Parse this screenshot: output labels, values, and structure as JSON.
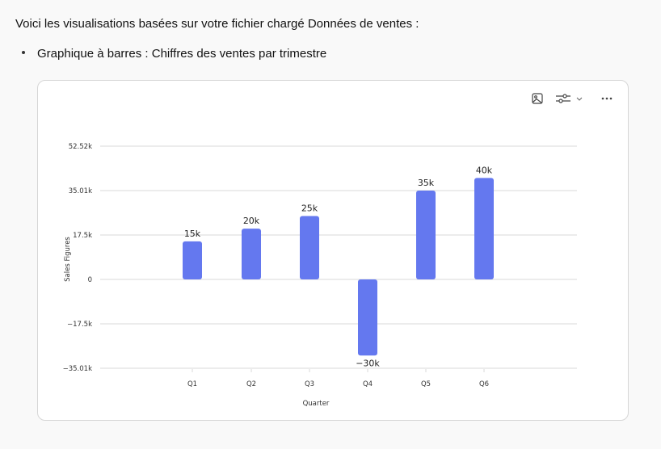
{
  "intro_text": "Voici les visualisations basées sur votre fichier chargé Données de ventes :",
  "bullet_item": "Graphique à barres : Chiffres des ventes par trimestre",
  "toolbar": {
    "image_icon": "image-icon",
    "settings_icon": "sliders-icon",
    "dropdown_icon": "chevron-down-icon",
    "more_icon": "more-horizontal-icon"
  },
  "colors": {
    "bar": "#6478ef",
    "grid": "#d9d9d9",
    "card_border": "#d6d6d6"
  },
  "chart_data": {
    "type": "bar",
    "title": "",
    "xlabel": "Quarter",
    "ylabel": "Sales Figures",
    "categories": [
      "Q1",
      "Q2",
      "Q3",
      "Q4",
      "Q5",
      "Q6"
    ],
    "values": [
      15000,
      20000,
      25000,
      -30000,
      35000,
      40000
    ],
    "data_labels": [
      "15k",
      "20k",
      "25k",
      "−30k",
      "35k",
      "40k"
    ],
    "yticks": [
      52520,
      35010,
      17500,
      0,
      -17500,
      -35010
    ],
    "ytick_labels": [
      "52.52k",
      "35.01k",
      "17.5k",
      "0",
      "−17.5k",
      "−35.01k"
    ],
    "ylim": [
      -35010,
      52520
    ],
    "grid": true,
    "legend": null
  }
}
